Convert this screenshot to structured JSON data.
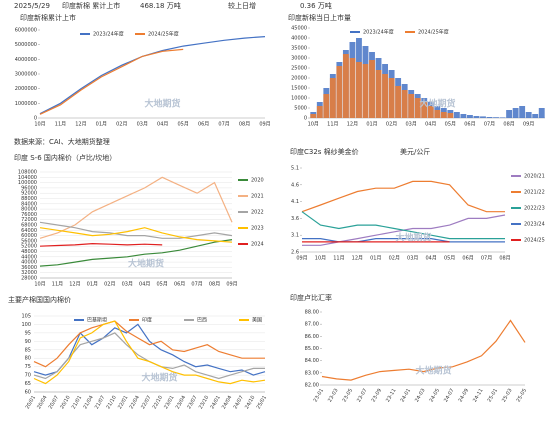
{
  "header": {
    "date": "2025/5/29",
    "label": "印度新棉 累计上市",
    "value": "468.18 万吨",
    "change_label": "较上日增",
    "change": "0.36 万吨"
  },
  "source": "数据来源：CAI、大地期货整理",
  "watermark": "大地期货",
  "chart_data": [
    {
      "type": "line",
      "title": "印度新棉累计上市",
      "grid": false,
      "categories": [
        "10月",
        "11月",
        "12月",
        "01月",
        "02月",
        "03月",
        "04月",
        "05月",
        "06月",
        "07月",
        "08月",
        "09月"
      ],
      "series": [
        {
          "name": "2023/24年度",
          "color": "#4472c4",
          "values": [
            300000,
            1000000,
            2000000,
            2900000,
            3600000,
            4200000,
            4600000,
            4900000,
            5100000,
            5300000,
            5450000,
            5550000
          ]
        },
        {
          "name": "2024/25年度",
          "color": "#ed7d31",
          "values": [
            250000,
            900000,
            1900000,
            2800000,
            3500000,
            4200000,
            4550000,
            4680000,
            null,
            null,
            null,
            null
          ]
        }
      ],
      "ylim": [
        0,
        6000000
      ],
      "yticks": [
        0,
        1000000,
        2000000,
        3000000,
        4000000,
        5000000,
        6000000
      ]
    },
    {
      "type": "bar",
      "title": "印度新棉当日上市量",
      "grid": false,
      "categories": [
        "10月",
        null,
        null,
        "11月",
        null,
        null,
        "12月",
        null,
        null,
        "01月",
        null,
        null,
        "02月",
        null,
        null,
        "03月",
        null,
        null,
        "04月",
        null,
        null,
        "05月",
        null,
        null,
        "06月",
        null,
        null,
        "07月",
        null,
        null,
        "08月",
        null,
        null,
        "09月",
        null,
        null
      ],
      "series": [
        {
          "name": "2023/24年度",
          "color": "#4472c4",
          "values": [
            3000,
            8000,
            15000,
            22000,
            28000,
            34000,
            38000,
            40000,
            36000,
            33000,
            30000,
            27000,
            24000,
            20000,
            17000,
            14000,
            12000,
            10000,
            8000,
            6000,
            5000,
            4000,
            3000,
            2000,
            1500,
            1000,
            800,
            500,
            400,
            300,
            4000,
            5000,
            6000,
            3000,
            2000,
            5000
          ]
        },
        {
          "name": "2024/25年度",
          "color": "#ed7d31",
          "values": [
            2000,
            6000,
            12000,
            20000,
            26000,
            32000,
            30000,
            28000,
            27000,
            29000,
            24000,
            22000,
            20000,
            16000,
            14000,
            12000,
            10000,
            8000,
            6000,
            4000,
            3000,
            2500,
            null,
            null,
            null,
            null,
            null,
            null,
            null,
            null,
            null,
            null,
            null,
            null,
            null,
            null
          ]
        }
      ],
      "ylim": [
        0,
        45000
      ],
      "yticks": [
        0,
        5000,
        10000,
        15000,
        20000,
        25000,
        30000,
        35000,
        40000,
        45000
      ]
    },
    {
      "type": "line",
      "title": "印度 S-6 国内棉价（卢比/坎地）",
      "grid": true,
      "categories": [
        "10月",
        "11月",
        "12月",
        "01月",
        "02月",
        "03月",
        "04月",
        "05月",
        "06月",
        "07月",
        "08月",
        "09月"
      ],
      "series": [
        {
          "name": "2020",
          "color": "#3a8a3a",
          "values": [
            37000,
            38000,
            40000,
            42000,
            43000,
            44000,
            46000,
            47000,
            49000,
            52000,
            55000,
            57000
          ]
        },
        {
          "name": "2021",
          "color": "#f4b183",
          "values": [
            58000,
            62000,
            68000,
            78000,
            84000,
            90000,
            96000,
            104000,
            98000,
            92000,
            100000,
            70000
          ]
        },
        {
          "name": "2022",
          "color": "#a5a5a5",
          "values": [
            70000,
            68000,
            66000,
            63000,
            62000,
            60000,
            60000,
            58000,
            58000,
            60000,
            62000,
            60000
          ]
        },
        {
          "name": "2023",
          "color": "#ffc000",
          "values": [
            66000,
            64000,
            62000,
            60000,
            61000,
            63000,
            66000,
            62000,
            59000,
            57000,
            56000,
            55000
          ]
        },
        {
          "name": "2024",
          "color": "#e02020",
          "values": [
            52000,
            52500,
            53000,
            54000,
            53500,
            53000,
            53500,
            53000,
            null,
            null,
            null,
            null
          ]
        }
      ],
      "ylim": [
        28000,
        108000
      ],
      "yticks": [
        28000,
        32000,
        36000,
        40000,
        44000,
        48000,
        52000,
        56000,
        60000,
        64000,
        68000,
        72000,
        76000,
        80000,
        84000,
        88000,
        92000,
        96000,
        100000,
        104000,
        108000
      ]
    },
    {
      "type": "line",
      "title": "印度C32s 棉纱美金价",
      "unit": "美元/公斤",
      "grid": false,
      "categories": [
        "09月",
        "10月",
        "11月",
        "12月",
        "01月",
        "02月",
        "03月",
        "04月",
        "05月",
        "06月",
        "07月",
        "08月"
      ],
      "series": [
        {
          "name": "2020/21",
          "color": "#9e7cc1",
          "values": [
            2.8,
            2.8,
            2.9,
            3.0,
            3.1,
            3.2,
            3.3,
            3.3,
            3.4,
            3.6,
            3.6,
            3.7
          ]
        },
        {
          "name": "2021/22",
          "color": "#ed7d31",
          "values": [
            3.8,
            4.0,
            4.2,
            4.4,
            4.5,
            4.5,
            4.7,
            4.7,
            4.6,
            4.0,
            3.8,
            3.8
          ]
        },
        {
          "name": "2022/23",
          "color": "#2aa198",
          "values": [
            3.8,
            3.4,
            3.3,
            3.4,
            3.4,
            3.3,
            3.2,
            3.1,
            3.0,
            3.0,
            3.0,
            3.0
          ]
        },
        {
          "name": "2023/24",
          "color": "#4472c4",
          "values": [
            3.0,
            3.0,
            2.9,
            2.9,
            3.0,
            3.0,
            3.0,
            3.0,
            2.9,
            2.9,
            2.9,
            2.9
          ]
        },
        {
          "name": "2024/25",
          "color": "#e02020",
          "values": [
            2.9,
            2.9,
            2.9,
            2.9,
            2.9,
            2.9,
            2.9,
            2.9,
            2.9,
            null,
            null,
            null
          ]
        }
      ],
      "ylim": [
        2.6,
        5.1
      ],
      "yticks": [
        2.6,
        3.1,
        3.6,
        4.1,
        4.6,
        5.1
      ]
    },
    {
      "type": "line",
      "title": "主要产棉国国内棉价",
      "grid": true,
      "categories": [
        "20/01",
        "20/04",
        "20/07",
        "20/10",
        "21/01",
        "21/04",
        "21/07",
        "21/10",
        "22/01",
        "22/04",
        "22/07",
        "22/10",
        "23/01",
        "23/04",
        "23/07",
        "23/10",
        "24/01",
        "24/04",
        "24/07",
        "24/10",
        "25/01"
      ],
      "series": [
        {
          "name": "巴基斯坦",
          "color": "#4472c4",
          "values": [
            72,
            70,
            72,
            80,
            95,
            88,
            92,
            98,
            95,
            100,
            90,
            85,
            82,
            78,
            75,
            76,
            74,
            72,
            73,
            70,
            72
          ]
        },
        {
          "name": "印度",
          "color": "#ed7d31",
          "values": [
            78,
            75,
            80,
            88,
            95,
            98,
            100,
            102,
            96,
            92,
            88,
            90,
            85,
            84,
            86,
            88,
            84,
            82,
            80,
            80,
            80
          ]
        },
        {
          "name": "巴西",
          "color": "#a5a5a5",
          "values": [
            70,
            68,
            72,
            80,
            88,
            90,
            92,
            95,
            88,
            82,
            78,
            75,
            74,
            76,
            72,
            70,
            68,
            70,
            72,
            74,
            74
          ]
        },
        {
          "name": "美国",
          "color": "#ffc000",
          "values": [
            68,
            65,
            70,
            78,
            92,
            95,
            100,
            102,
            90,
            80,
            78,
            75,
            72,
            70,
            70,
            68,
            66,
            65,
            67,
            66,
            67
          ]
        }
      ],
      "ylim": [
        60,
        105
      ],
      "yticks": [
        60,
        65,
        70,
        75,
        80,
        85,
        90,
        95,
        100,
        105
      ]
    },
    {
      "type": "line",
      "title": "印度卢比汇率",
      "grid": false,
      "color": "#ed7d31",
      "categories": [
        "23-01",
        "23-03",
        "23-05",
        "23-07",
        "23-09",
        "23-11",
        "24-01",
        "24-03",
        "24-05",
        "24-07",
        "24-09",
        "24-11",
        "25-01",
        "25-03",
        "25-05"
      ],
      "values": [
        82.7,
        82.5,
        82.4,
        82.8,
        83.1,
        83.2,
        83.3,
        83.1,
        83.4,
        83.5,
        83.9,
        84.4,
        85.6,
        87.3,
        85.5
      ],
      "ylim": [
        82,
        88
      ],
      "yticks": [
        {
          "value": 82,
          "label": "82.00"
        },
        {
          "value": 83,
          "label": "83.00"
        },
        {
          "value": 84,
          "label": "84.00"
        },
        {
          "value": 85,
          "label": "85.00"
        },
        {
          "value": 86,
          "label": "86.00"
        },
        {
          "value": 87,
          "label": "87.00"
        },
        {
          "value": 88,
          "label": "88.00"
        }
      ]
    }
  ]
}
